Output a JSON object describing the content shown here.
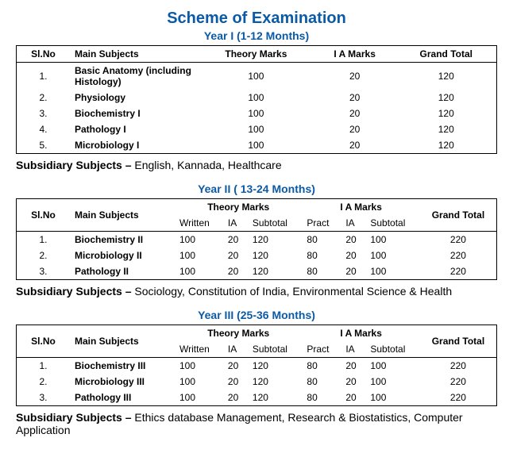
{
  "colors": {
    "accent": "#0b5aa5",
    "text": "#000000",
    "border": "#000000",
    "bg": "#ffffff"
  },
  "title": "Scheme of Examination",
  "year1": {
    "heading": "Year I (1-12 Months)",
    "columns": {
      "slno": "Sl.No",
      "subject": "Main Subjects",
      "theory": "Theory Marks",
      "ia": "I A Marks",
      "total": "Grand Total"
    },
    "rows": [
      {
        "n": "1.",
        "subject": "Basic Anatomy (including Histology)",
        "theory": "100",
        "ia": "20",
        "total": "120"
      },
      {
        "n": "2.",
        "subject": "Physiology",
        "theory": "100",
        "ia": "20",
        "total": "120"
      },
      {
        "n": "3.",
        "subject": "Biochemistry I",
        "theory": "100",
        "ia": "20",
        "total": "120"
      },
      {
        "n": "4.",
        "subject": "Pathology I",
        "theory": "100",
        "ia": "20",
        "total": "120"
      },
      {
        "n": "5.",
        "subject": "Microbiology I",
        "theory": "100",
        "ia": "20",
        "total": "120"
      }
    ],
    "subsidiary_label": "Subsidiary Subjects –",
    "subsidiary": "English, Kannada, Healthcare"
  },
  "year2": {
    "heading": "Year II ( 13-24 Months)",
    "columns": {
      "slno": "Sl.No",
      "subject": "Main Subjects",
      "theory_group": "Theory Marks",
      "ia_group": "I A Marks",
      "total": "Grand Total",
      "written": "Written",
      "ia": "IA",
      "subtotal": "Subtotal",
      "pract": "Pract",
      "ia2": "IA",
      "subtotal2": "Subtotal"
    },
    "rows": [
      {
        "n": "1.",
        "subject": "Biochemistry II",
        "w": "100",
        "ia": "20",
        "st": "120",
        "p": "80",
        "ia2": "20",
        "st2": "100",
        "total": "220"
      },
      {
        "n": "2.",
        "subject": "Microbiology II",
        "w": "100",
        "ia": "20",
        "st": "120",
        "p": "80",
        "ia2": "20",
        "st2": "100",
        "total": "220"
      },
      {
        "n": "3.",
        "subject": "Pathology II",
        "w": "100",
        "ia": "20",
        "st": "120",
        "p": "80",
        "ia2": "20",
        "st2": "100",
        "total": "220"
      }
    ],
    "subsidiary_label": "Subsidiary Subjects –",
    "subsidiary": "Sociology, Constitution of India, Environmental Science & Health"
  },
  "year3": {
    "heading": "Year III (25-36 Months)",
    "columns": {
      "slno": "Sl.No",
      "subject": "Main Subjects",
      "theory_group": "Theory Marks",
      "ia_group": "I A Marks",
      "total": "Grand Total",
      "written": "Written",
      "ia": "IA",
      "subtotal": "Subtotal",
      "pract": "Pract",
      "ia2": "IA",
      "subtotal2": "Subtotal"
    },
    "rows": [
      {
        "n": "1.",
        "subject": "Biochemistry III",
        "w": "100",
        "ia": "20",
        "st": "120",
        "p": "80",
        "ia2": "20",
        "st2": "100",
        "total": "220"
      },
      {
        "n": "2.",
        "subject": "Microbiology III",
        "w": "100",
        "ia": "20",
        "st": "120",
        "p": "80",
        "ia2": "20",
        "st2": "100",
        "total": "220"
      },
      {
        "n": "3.",
        "subject": "Pathology III",
        "w": "100",
        "ia": "20",
        "st": "120",
        "p": "80",
        "ia2": "20",
        "st2": "100",
        "total": "220"
      }
    ],
    "subsidiary_label": "Subsidiary Subjects –",
    "subsidiary": "Ethics database Management, Research & Biostatistics, Computer Application"
  }
}
